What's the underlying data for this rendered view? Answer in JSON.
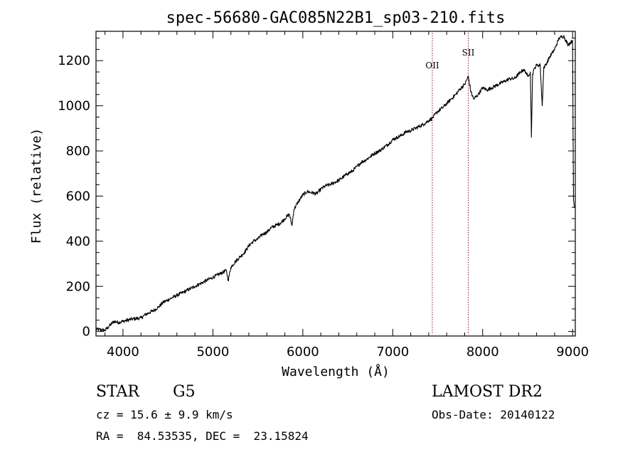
{
  "chart_data": {
    "type": "line",
    "title": "spec-56680-GAC085N22B1_sp03-210.fits",
    "xlabel": "Wavelength (Å)",
    "ylabel": "Flux (relative)",
    "xlim": [
      3700,
      9030
    ],
    "ylim": [
      -20,
      1330
    ],
    "x_ticks": [
      4000,
      5000,
      6000,
      7000,
      8000,
      9000
    ],
    "y_ticks": [
      0,
      200,
      400,
      600,
      800,
      1000,
      1200
    ],
    "grid": false,
    "line_color": "#000000",
    "marker_color": "#8b1a1a",
    "lines": [
      {
        "label": "OII",
        "x": 7440
      },
      {
        "label": "SII",
        "x": 7840
      }
    ],
    "series": [
      {
        "name": "flux",
        "points": [
          [
            3700,
            10
          ],
          [
            3800,
            5
          ],
          [
            3850,
            25
          ],
          [
            3900,
            45
          ],
          [
            3950,
            40
          ],
          [
            4000,
            45
          ],
          [
            4100,
            55
          ],
          [
            4200,
            60
          ],
          [
            4250,
            75
          ],
          [
            4300,
            85
          ],
          [
            4350,
            95
          ],
          [
            4400,
            110
          ],
          [
            4450,
            130
          ],
          [
            4500,
            140
          ],
          [
            4550,
            150
          ],
          [
            4600,
            160
          ],
          [
            4650,
            170
          ],
          [
            4700,
            180
          ],
          [
            4750,
            190
          ],
          [
            4800,
            200
          ],
          [
            4850,
            210
          ],
          [
            4900,
            220
          ],
          [
            4950,
            230
          ],
          [
            5000,
            240
          ],
          [
            5050,
            250
          ],
          [
            5100,
            260
          ],
          [
            5150,
            270
          ],
          [
            5170,
            225
          ],
          [
            5200,
            285
          ],
          [
            5250,
            310
          ],
          [
            5300,
            330
          ],
          [
            5350,
            350
          ],
          [
            5400,
            380
          ],
          [
            5450,
            400
          ],
          [
            5500,
            410
          ],
          [
            5550,
            430
          ],
          [
            5600,
            440
          ],
          [
            5650,
            460
          ],
          [
            5700,
            470
          ],
          [
            5750,
            480
          ],
          [
            5800,
            500
          ],
          [
            5850,
            520
          ],
          [
            5880,
            470
          ],
          [
            5900,
            540
          ],
          [
            5950,
            575
          ],
          [
            6000,
            605
          ],
          [
            6050,
            620
          ],
          [
            6100,
            615
          ],
          [
            6150,
            610
          ],
          [
            6200,
            630
          ],
          [
            6250,
            645
          ],
          [
            6300,
            650
          ],
          [
            6350,
            660
          ],
          [
            6400,
            670
          ],
          [
            6450,
            685
          ],
          [
            6500,
            700
          ],
          [
            6550,
            710
          ],
          [
            6600,
            730
          ],
          [
            6650,
            750
          ],
          [
            6700,
            760
          ],
          [
            6750,
            775
          ],
          [
            6800,
            790
          ],
          [
            6850,
            800
          ],
          [
            6900,
            815
          ],
          [
            6950,
            830
          ],
          [
            7000,
            850
          ],
          [
            7050,
            860
          ],
          [
            7100,
            870
          ],
          [
            7150,
            885
          ],
          [
            7200,
            890
          ],
          [
            7250,
            900
          ],
          [
            7300,
            910
          ],
          [
            7350,
            920
          ],
          [
            7400,
            935
          ],
          [
            7440,
            945
          ],
          [
            7500,
            975
          ],
          [
            7550,
            990
          ],
          [
            7600,
            1010
          ],
          [
            7650,
            1030
          ],
          [
            7700,
            1050
          ],
          [
            7750,
            1075
          ],
          [
            7800,
            1095
          ],
          [
            7840,
            1130
          ],
          [
            7870,
            1060
          ],
          [
            7900,
            1030
          ],
          [
            7950,
            1050
          ],
          [
            8000,
            1080
          ],
          [
            8050,
            1070
          ],
          [
            8100,
            1080
          ],
          [
            8150,
            1090
          ],
          [
            8200,
            1100
          ],
          [
            8250,
            1110
          ],
          [
            8300,
            1120
          ],
          [
            8350,
            1120
          ],
          [
            8400,
            1140
          ],
          [
            8450,
            1160
          ],
          [
            8480,
            1150
          ],
          [
            8500,
            1130
          ],
          [
            8530,
            1150
          ],
          [
            8542,
            860
          ],
          [
            8555,
            1140
          ],
          [
            8580,
            1170
          ],
          [
            8600,
            1180
          ],
          [
            8640,
            1180
          ],
          [
            8662,
            1000
          ],
          [
            8680,
            1170
          ],
          [
            8700,
            1180
          ],
          [
            8750,
            1220
          ],
          [
            8800,
            1250
          ],
          [
            8850,
            1300
          ],
          [
            8900,
            1310
          ],
          [
            8950,
            1270
          ],
          [
            9000,
            1290
          ],
          [
            9010,
            580
          ],
          [
            9020,
            550
          ]
        ]
      }
    ]
  },
  "info": {
    "object_class": "STAR",
    "subclass": "G5",
    "survey": "LAMOST DR2",
    "cz": "cz = 15.6 ± 9.9 km/s",
    "obs_date": "Obs-Date: 20140122",
    "coords": "RA =  84.53535, DEC =  23.15824"
  }
}
